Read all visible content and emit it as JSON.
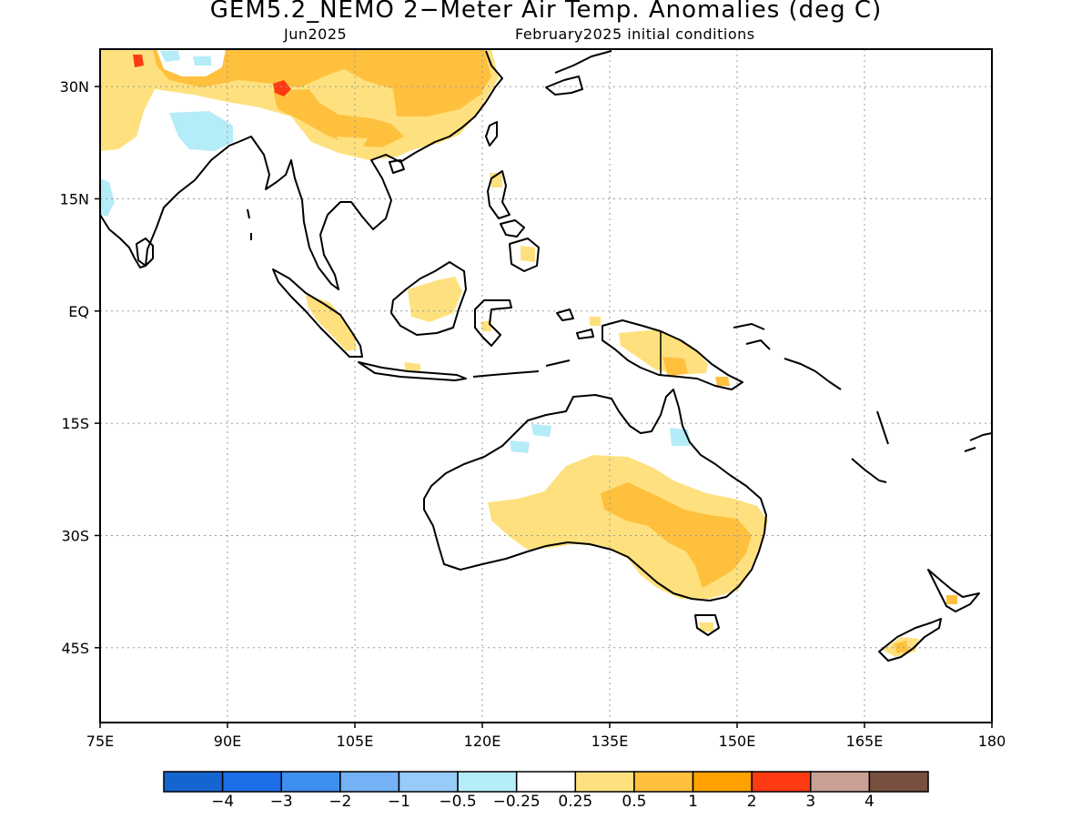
{
  "title": "GEM5.2_NEMO 2−Meter Air Temp. Anomalies (deg C)",
  "subtitle_left": "Jun2025",
  "subtitle_right": "February2025 initial conditions",
  "map": {
    "lon_range": [
      75,
      180
    ],
    "lat_range": [
      -55,
      35
    ],
    "lat_ticks": [
      {
        "value": 30,
        "label": "30N"
      },
      {
        "value": 15,
        "label": "15N"
      },
      {
        "value": 0,
        "label": "EQ"
      },
      {
        "value": -15,
        "label": "15S"
      },
      {
        "value": -30,
        "label": "30S"
      },
      {
        "value": -45,
        "label": "45S"
      }
    ],
    "lon_ticks": [
      {
        "value": 75,
        "label": "75E"
      },
      {
        "value": 90,
        "label": "90E"
      },
      {
        "value": 105,
        "label": "105E"
      },
      {
        "value": 120,
        "label": "120E"
      },
      {
        "value": 135,
        "label": "135E"
      },
      {
        "value": 150,
        "label": "150E"
      },
      {
        "value": 165,
        "label": "165E"
      },
      {
        "value": 180,
        "label": "180"
      }
    ],
    "grid": "dotted"
  },
  "colorbar": {
    "colors": [
      "#1565d1",
      "#1d6ee8",
      "#3d8ff0",
      "#74b2f5",
      "#98cbf7",
      "#b4ecf8",
      "#ffffff",
      "#fee17e",
      "#ffc03e",
      "#ffa100",
      "#fe3a12",
      "#c9a093",
      "#79503f"
    ],
    "labels": [
      "−4",
      "−3",
      "−2",
      "−1",
      "−0.5",
      "−0.25",
      "0.25",
      "0.5",
      "1",
      "2",
      "3",
      "4"
    ]
  }
}
